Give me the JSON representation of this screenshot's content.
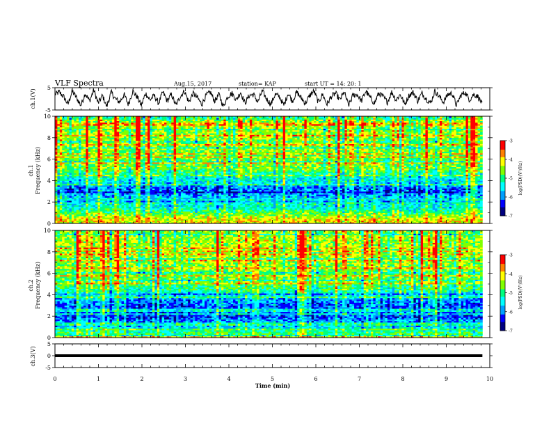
{
  "header": {
    "title": "VLF Spectra",
    "date": "Aug.15, 2017",
    "station": "station= KAP",
    "start_time": "start  UT  =   14: 20: 1"
  },
  "chart_data": [
    {
      "type": "line",
      "panel": "ch1-waveform",
      "ylabel": "ch.1(V)",
      "ylim": [
        -5,
        5
      ],
      "yticks": [
        "5",
        "-5"
      ],
      "x_range_min": [
        0,
        9.83
      ],
      "y_level_V": [
        2.0,
        3.0,
        1.0,
        -2.5,
        3.5,
        0.5,
        -3.0,
        2.5,
        -1.0,
        4.0,
        -2.0,
        1.5,
        -3.5,
        3.0,
        0.0,
        -1.5,
        2.0,
        -2.5,
        3.5,
        1.0,
        -3.0,
        2.5,
        -0.5,
        1.5,
        -2.0,
        3.0,
        -1.0,
        2.0,
        -3.0,
        1.0,
        3.5,
        -1.5,
        2.5,
        0.5,
        -2.5,
        1.5,
        3.0,
        -1.0,
        2.0,
        -3.5,
        1.0,
        2.5,
        -0.5,
        3.0,
        -2.0,
        1.5,
        2.0,
        -1.5,
        3.5,
        0.0,
        -2.5,
        2.0,
        1.0,
        -3.0,
        2.5,
        -1.0,
        3.0,
        0.5,
        -2.0,
        1.5,
        3.5,
        -1.5,
        2.0,
        -2.5,
        1.0,
        2.5,
        -0.5,
        3.0,
        -3.0,
        1.5,
        2.0,
        -1.0,
        3.5,
        0.5,
        -2.0,
        2.5,
        1.0,
        -1.5,
        3.0,
        -0.5,
        2.0,
        -2.5,
        1.5,
        3.0,
        -1.0,
        2.5,
        0.0,
        -2.0,
        3.5,
        1.0,
        -1.5,
        2.0,
        2.5,
        -3.0,
        1.5,
        3.0,
        -0.5,
        2.0,
        1.0,
        -2.5
      ]
    },
    {
      "type": "heatmap",
      "panel": "ch1-spectrogram",
      "ylabel_line1": "ch.1",
      "ylabel_line2": "Frequency (kHz)",
      "ylim": [
        0,
        10
      ],
      "yticks": [
        "0",
        "2",
        "4",
        "6",
        "8",
        "10"
      ],
      "x_range_min": [
        0,
        9.83
      ],
      "colorbar": {
        "label": "log(PSD)(V²/Hz)",
        "range": [
          -7,
          -3
        ],
        "ticks": [
          "-3",
          "-4",
          "-5",
          "-6",
          "-7"
        ]
      },
      "level_profile_by_kHz": [
        [
          0.0,
          -4.2
        ],
        [
          0.3,
          -4.0
        ],
        [
          0.8,
          -4.6
        ],
        [
          1.2,
          -5.0
        ],
        [
          1.6,
          -5.4
        ],
        [
          2.0,
          -5.2
        ],
        [
          2.4,
          -5.6
        ],
        [
          2.8,
          -5.9
        ],
        [
          3.2,
          -6.1
        ],
        [
          3.6,
          -5.7
        ],
        [
          4.0,
          -5.4
        ],
        [
          4.6,
          -5.2
        ],
        [
          5.0,
          -4.8
        ],
        [
          5.4,
          -4.6
        ],
        [
          6.0,
          -4.7
        ],
        [
          7.0,
          -4.6
        ],
        [
          8.0,
          -4.5
        ],
        [
          9.0,
          -4.4
        ],
        [
          10.0,
          -4.5
        ]
      ]
    },
    {
      "type": "heatmap",
      "panel": "ch2-spectrogram",
      "ylabel_line1": "ch.2",
      "ylabel_line2": "Frequency (kHz)",
      "ylim": [
        0,
        10
      ],
      "yticks": [
        "0",
        "2",
        "4",
        "6",
        "8",
        "10"
      ],
      "x_range_min": [
        0,
        9.83
      ],
      "colorbar": {
        "label": "log(PSD)(V²/Hz)",
        "range": [
          -7,
          -3
        ],
        "ticks": [
          "-3",
          "-4",
          "-5",
          "-6",
          "-7"
        ]
      },
      "level_profile_by_kHz": [
        [
          0.0,
          -4.6
        ],
        [
          0.5,
          -5.0
        ],
        [
          1.0,
          -5.6
        ],
        [
          1.5,
          -5.9
        ],
        [
          2.0,
          -6.2
        ],
        [
          2.5,
          -6.0
        ],
        [
          3.0,
          -6.1
        ],
        [
          3.5,
          -5.8
        ],
        [
          4.0,
          -5.5
        ],
        [
          4.5,
          -5.0
        ],
        [
          5.0,
          -4.8
        ],
        [
          5.5,
          -4.6
        ],
        [
          6.0,
          -4.7
        ],
        [
          7.0,
          -4.5
        ],
        [
          8.0,
          -4.5
        ],
        [
          9.0,
          -4.4
        ],
        [
          10.0,
          -4.6
        ]
      ]
    },
    {
      "type": "line",
      "panel": "ch3-waveform",
      "ylabel": "ch.3(V)",
      "ylim": [
        -5,
        5
      ],
      "yticks": [
        "5",
        "0",
        "-5"
      ],
      "x_range_min": [
        0,
        9.83
      ],
      "constant_value_V": 0.0
    }
  ],
  "x_axis": {
    "label": "Time  (min)",
    "range": [
      0,
      10
    ],
    "ticks": [
      "0",
      "1",
      "2",
      "3",
      "4",
      "5",
      "6",
      "7",
      "8",
      "9",
      "10"
    ]
  },
  "colormap": [
    "#000080",
    "#0000ff",
    "#00a0ff",
    "#00ffff",
    "#00ff80",
    "#80ff00",
    "#ffff00",
    "#ff8000",
    "#ff0000",
    "#ffffff"
  ]
}
